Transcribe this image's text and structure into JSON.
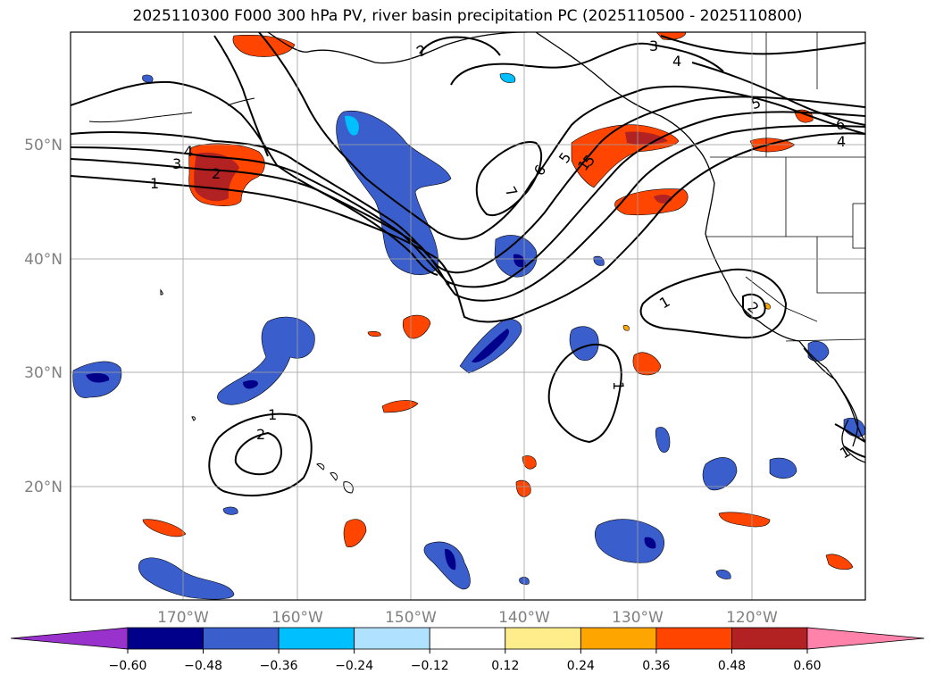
{
  "title": "2025110300 F000 300 hPa PV, river basin precipitation PC (2025110500 - 2025110800)",
  "lat_labels": [
    "50°N",
    "40°N",
    "30°N",
    "20°N"
  ],
  "lon_labels": [
    "170°W",
    "160°W",
    "150°W",
    "140°W",
    "130°W",
    "120°W"
  ],
  "colorbar": {
    "ticks": [
      "−0.60",
      "−0.48",
      "−0.36",
      "−0.24",
      "−0.12",
      "0.12",
      "0.24",
      "0.36",
      "0.48",
      "0.60"
    ],
    "colors": {
      "under": "#9932cc",
      "bins": [
        "#00008b",
        "#3a5fcd",
        "#00bfff",
        "#b0e2ff",
        "#ffffff",
        "#ffec8b",
        "#ffa500",
        "#ff4500",
        "#b22222"
      ],
      "over": "#ff82ab"
    }
  },
  "contour_labels": [
    "1",
    "2",
    "3",
    "4",
    "1",
    "2",
    "1",
    "2",
    "3",
    "4",
    "5",
    "6",
    "7",
    "5",
    "6",
    "4",
    "1",
    "2",
    "1",
    "1",
    "5"
  ]
}
